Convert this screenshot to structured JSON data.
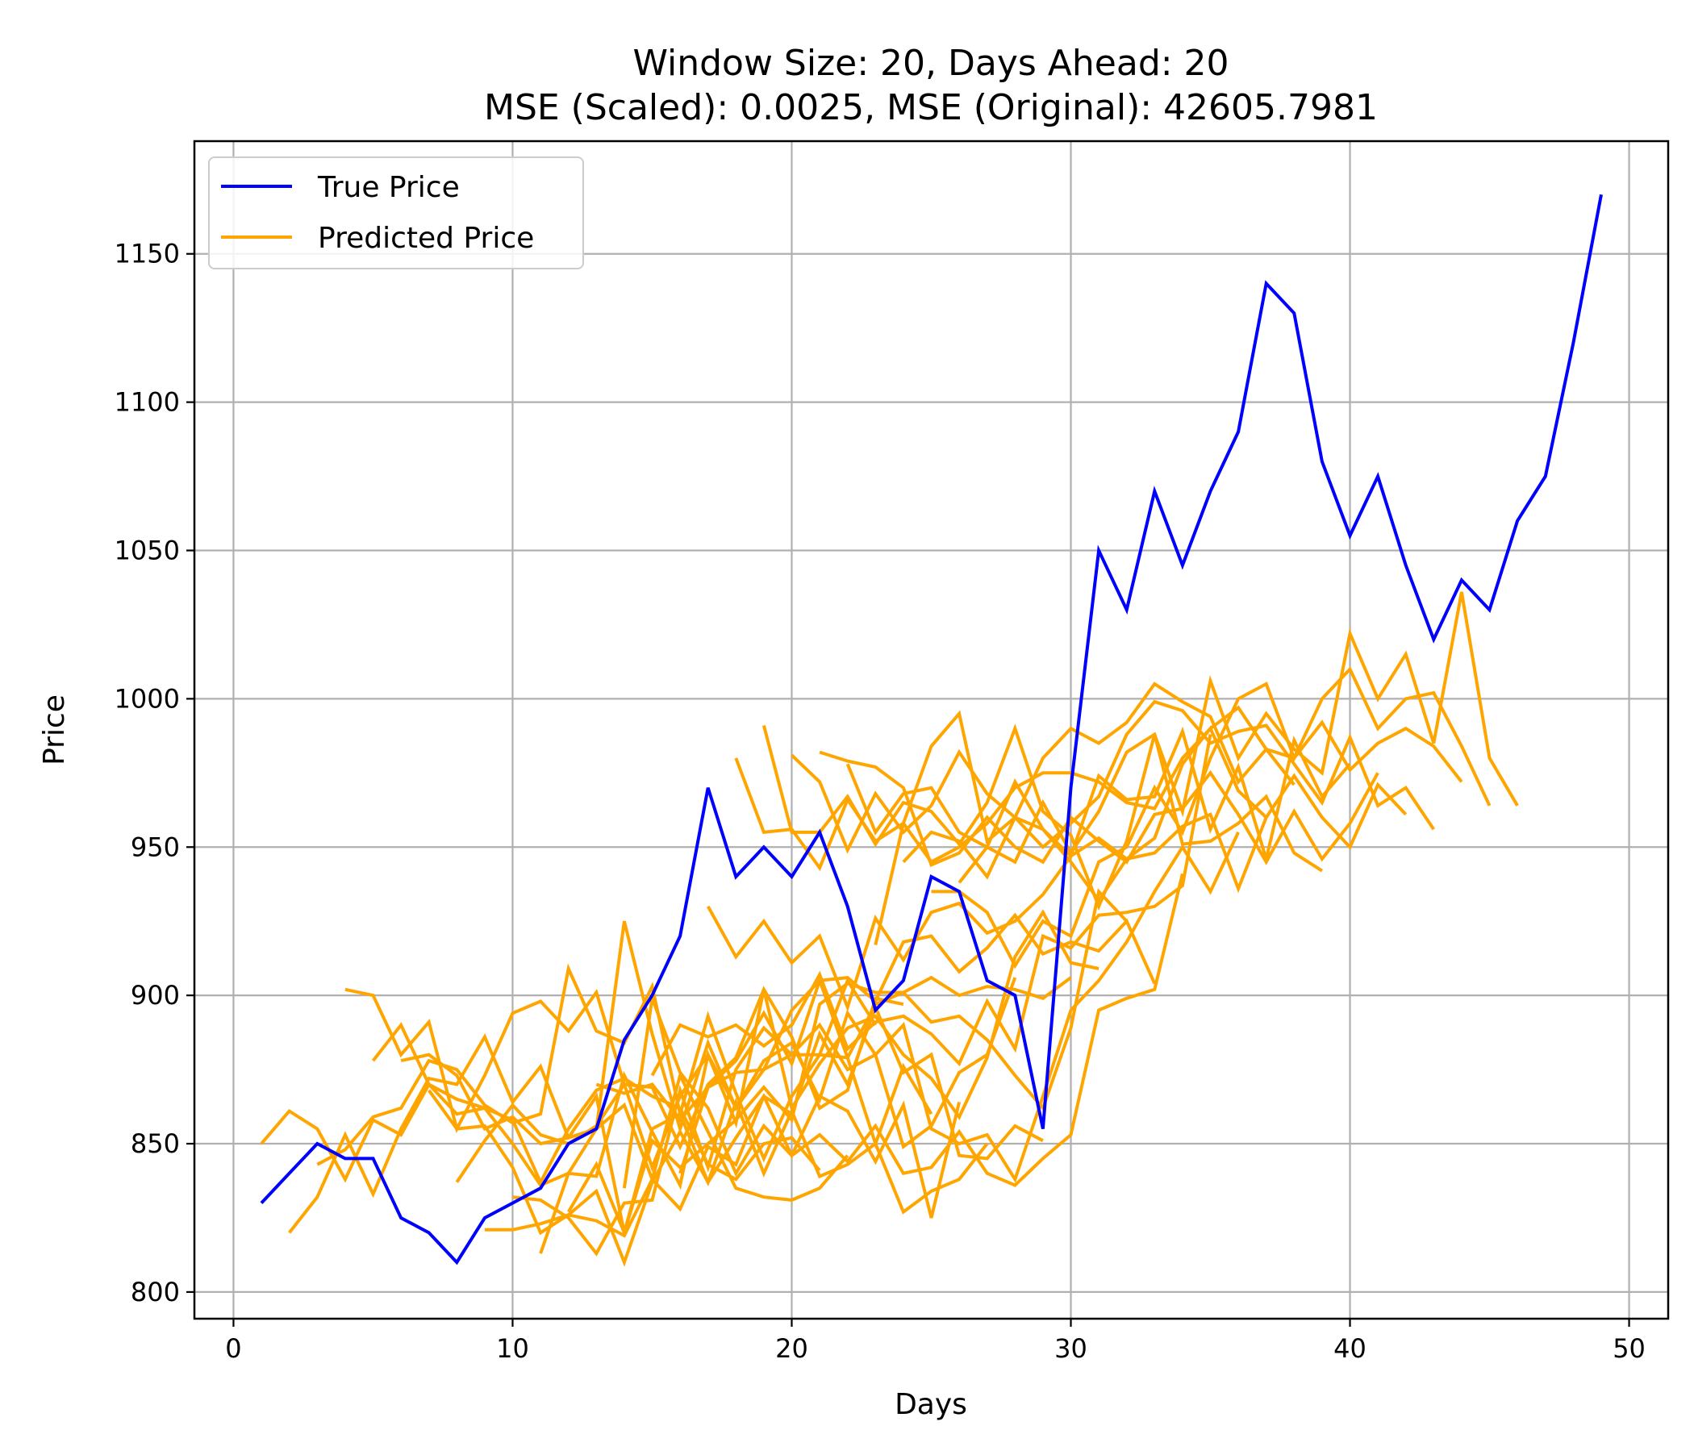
{
  "chart_data": {
    "type": "line",
    "title_line1": "Window Size: 20, Days Ahead: 20",
    "title_line2": "MSE (Scaled): 0.0025, MSE (Original): 42605.7981",
    "xlabel": "Days",
    "ylabel": "Price",
    "xlim": [
      -1.4,
      51.4
    ],
    "ylim": [
      791,
      1188
    ],
    "xticks": [
      0,
      10,
      20,
      30,
      40,
      50
    ],
    "yticks": [
      800,
      850,
      900,
      950,
      1000,
      1050,
      1100,
      1150
    ],
    "grid": true,
    "legend_position": "top-left",
    "legend": [
      {
        "label": "True Price",
        "color": "#0000ff"
      },
      {
        "label": "Predicted Price",
        "color": "#ffa500"
      }
    ],
    "series": [
      {
        "name": "True Price",
        "color": "#0000ff",
        "x": [
          1,
          2,
          3,
          4,
          5,
          6,
          7,
          8,
          9,
          10,
          11,
          12,
          13,
          14,
          15,
          16,
          17,
          18,
          19,
          20,
          21,
          22,
          23,
          24,
          25,
          26,
          27,
          28,
          29,
          30,
          31,
          32,
          33,
          34,
          35,
          36,
          37,
          38,
          39,
          40,
          41,
          42,
          43,
          44,
          45,
          46,
          47,
          48,
          49
        ],
        "values": [
          830,
          840,
          850,
          845,
          845,
          825,
          820,
          810,
          825,
          830,
          835,
          850,
          855,
          885,
          900,
          920,
          970,
          940,
          950,
          940,
          955,
          930,
          895,
          905,
          940,
          935,
          905,
          900,
          855,
          970,
          1050,
          1030,
          1070,
          1045,
          1070,
          1090,
          1140,
          1130,
          1080,
          1055,
          1075,
          1045,
          1020,
          1040,
          1030,
          1060,
          1075,
          1120,
          1170
        ]
      }
    ],
    "predicted_series": {
      "name": "Predicted Price",
      "color": "#ffa500",
      "paths": [
        {
          "x_start": 1,
          "values": [
            850,
            861,
            855,
            838,
            858,
            853,
            870,
            860,
            862,
            858,
            837,
            855,
            868,
            872,
            866,
            862,
            843,
            838,
            850,
            852,
            841
          ]
        },
        {
          "x_start": 2,
          "values": [
            820,
            832,
            853,
            833,
            855,
            872,
            870,
            886,
            864,
            876,
            852,
            855,
            863,
            838,
            873,
            854,
            835,
            832,
            831,
            835,
            846
          ]
        },
        {
          "x_start": 3,
          "values": [
            843,
            848,
            859,
            862,
            878,
            875,
            863,
            857,
            860,
            909,
            888,
            884,
            903,
            860,
            893,
            867,
            845,
            866,
            880,
            905,
            890
          ]
        },
        {
          "x_start": 4,
          "values": [
            902,
            900,
            880,
            891,
            855,
            873,
            894,
            898,
            888,
            901,
            870,
            869,
            849,
            870,
            879,
            902,
            886,
            862,
            868,
            899,
            897
          ]
        },
        {
          "x_start": 5,
          "values": [
            878,
            890,
            870,
            865,
            862,
            850,
            836,
            840,
            855,
            925,
            887,
            855,
            884,
            862,
            875,
            895,
            905,
            879,
            850,
            876,
            860
          ]
        },
        {
          "x_start": 6,
          "values": [
            878,
            880,
            873,
            855,
            859,
            850,
            852,
            866,
            820,
            855,
            860,
            837,
            852,
            866,
            846,
            866,
            861,
            844,
            863,
            825,
            864
          ]
        },
        {
          "x_start": 7,
          "values": [
            868,
            855,
            856,
            842,
            820,
            826,
            834,
            810,
            837,
            854,
            837,
            864,
            840,
            861,
            839,
            843,
            850,
            827,
            834,
            838,
            850
          ]
        },
        {
          "x_start": 8,
          "values": [
            837,
            851,
            863,
            853,
            850,
            856,
            870,
            842,
            866,
            880,
            862,
            878,
            884,
            865,
            894,
            880,
            849,
            856,
            874,
            880,
            906
          ]
        },
        {
          "x_start": 9,
          "values": [
            821,
            821,
            823,
            826,
            824,
            819,
            838,
            828,
            849,
            843,
            866,
            860,
            887,
            870,
            896,
            874,
            880,
            846,
            845,
            856,
            851
          ]
        },
        {
          "x_start": 10,
          "values": [
            832,
            831,
            825,
            813,
            830,
            831,
            868,
            842,
            875,
            889,
            880,
            880,
            879,
            897,
            901,
            906,
            900,
            903,
            902,
            899,
            906
          ]
        },
        {
          "x_start": 11,
          "values": [
            813,
            840,
            839,
            873,
            854,
            836,
            880,
            857,
            902,
            862,
            877,
            889,
            893,
            880,
            872,
            859,
            879,
            913,
            928,
            911,
            909
          ]
        },
        {
          "x_start": 12,
          "values": [
            827,
            843,
            820,
            851,
            842,
            850,
            858,
            869,
            858,
            897,
            904,
            901,
            901,
            891,
            893,
            885,
            873,
            862,
            889,
            935,
            925
          ]
        },
        {
          "x_start": 13,
          "values": [
            870,
            867,
            870,
            858,
            869,
            878,
            894,
            877,
            905,
            906,
            898,
            918,
            920,
            908,
            916,
            927,
            914,
            918,
            915,
            925,
            904
          ]
        },
        {
          "x_start": 14,
          "values": [
            835,
            899,
            874,
            862,
            840,
            856,
            846,
            853,
            844,
            856,
            840,
            842,
            854,
            840,
            836,
            845,
            853,
            895,
            899,
            902,
            941
          ]
        },
        {
          "x_start": 15,
          "values": [
            873,
            890,
            886,
            890,
            883,
            890,
            907,
            882,
            891,
            893,
            887,
            877,
            898,
            882,
            920,
            916,
            927,
            928,
            930,
            937,
            988
          ]
        },
        {
          "x_start": 16,
          "values": [
            840,
            869,
            874,
            875,
            880,
            890,
            875,
            880,
            890,
            855,
            850,
            853,
            838,
            866,
            895,
            905,
            918,
            935,
            950,
            935,
            955
          ]
        },
        {
          "x_start": 17,
          "values": [
            930,
            913,
            925,
            911,
            920,
            896,
            926,
            912,
            928,
            931,
            921,
            925,
            934,
            947,
            953,
            946,
            953,
            978,
            990,
            969,
            960
          ]
        },
        {
          "x_start": 18,
          "values": [
            980,
            955,
            956,
            943,
            966,
            952,
            958,
            945,
            950,
            958,
            970,
            975,
            975,
            972,
            965,
            963,
            980,
            990,
            997,
            983,
            971
          ]
        },
        {
          "x_start": 19,
          "values": [
            991,
            955,
            955,
            967,
            951,
            965,
            962,
            951,
            965,
            990,
            962,
            954,
            930,
            952,
            988,
            951,
            952,
            958,
            967,
            948,
            942
          ]
        },
        {
          "x_start": 20,
          "values": [
            981,
            972,
            949,
            968,
            955,
            964,
            982,
            968,
            960,
            956,
            947,
            974,
            966,
            967,
            989,
            956,
            977,
            946,
            986,
            967,
            978
          ]
        },
        {
          "x_start": 21,
          "values": [
            982,
            979,
            977,
            970,
            944,
            948,
            960,
            950,
            945,
            960,
            952,
            945,
            961,
            963,
            975,
            961,
            945,
            962,
            946,
            958,
            975
          ]
        },
        {
          "x_start": 22,
          "values": [
            978,
            955,
            968,
            970,
            955,
            950,
            972,
            956,
            945,
            932,
            946,
            948,
            957,
            961,
            936,
            960,
            974,
            960,
            950,
            971,
            961
          ]
        },
        {
          "x_start": 23,
          "values": [
            917,
            958,
            984,
            995,
            952,
            960,
            950,
            958,
            967,
            988,
            999,
            996,
            985,
            989,
            991,
            978,
            965,
            987,
            964,
            970,
            956
          ]
        },
        {
          "x_start": 24,
          "values": [
            945,
            955,
            952,
            940,
            960,
            980,
            990,
            985,
            992,
            1005,
            999,
            994,
            972,
            983,
            980,
            992,
            976,
            985,
            990,
            984,
            972
          ]
        },
        {
          "x_start": 25,
          "values": [
            935,
            935,
            928,
            910,
            925,
            920,
            945,
            950,
            970,
            955,
            980,
            1000,
            1005,
            980,
            1000,
            1010,
            990,
            1000,
            1002,
            984,
            964
          ]
        },
        {
          "x_start": 26,
          "values": [
            938,
            950,
            945,
            965,
            948,
            962,
            982,
            988,
            962,
            1006,
            980,
            995,
            983,
            975,
            1022,
            1000,
            1015,
            985,
            1036,
            980,
            964
          ]
        }
      ]
    }
  }
}
